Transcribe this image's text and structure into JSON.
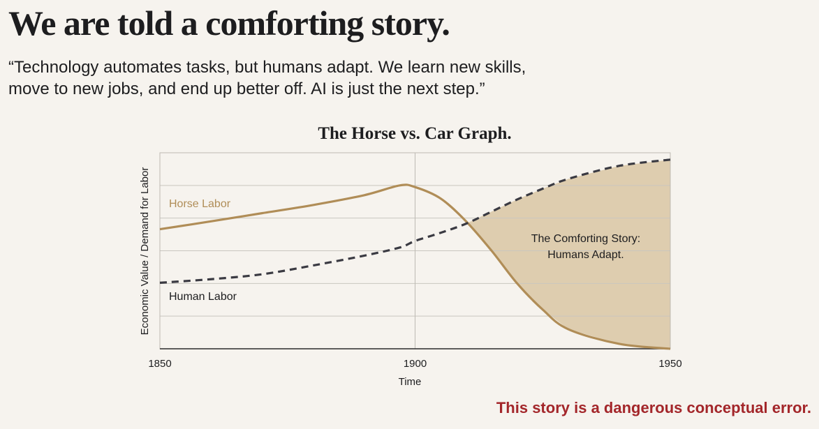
{
  "title": "We are told a comforting story.",
  "quote": [
    "“Technology automates tasks, but humans adapt. We learn new skills,",
    "move to new jobs, and end up better off. AI is just the next step.”"
  ],
  "footer": "This story is a dangerous conceptual error.",
  "chart_data": {
    "type": "line",
    "title": "The Horse vs. Car Graph.",
    "x_label": "Time",
    "y_label": "Economic Value / Demand for Labor",
    "x": [
      1850,
      1860,
      1870,
      1880,
      1890,
      1897,
      1900,
      1905,
      1910,
      1915,
      1920,
      1925,
      1930,
      1940,
      1950
    ],
    "series": [
      {
        "name": "Horse Labor",
        "color": "#b08d57",
        "values": [
          3.66,
          3.9,
          4.15,
          4.4,
          4.7,
          5.0,
          4.95,
          4.6,
          3.9,
          3.0,
          2.0,
          1.2,
          0.6,
          0.15,
          0.0
        ]
      },
      {
        "name": "Human Labor",
        "color": "#3a3a42",
        "dashed": true,
        "values": [
          2.02,
          2.13,
          2.28,
          2.55,
          2.85,
          3.1,
          3.3,
          3.55,
          3.83,
          4.2,
          4.57,
          4.9,
          5.2,
          5.6,
          5.79
        ]
      }
    ],
    "annotation": [
      "The Comforting Story:",
      "Humans Adapt."
    ],
    "shade_color": "#d9c6a3",
    "xlim": [
      1850,
      1950
    ],
    "xticks": [
      1850,
      1900,
      1950
    ],
    "ylim": [
      0,
      6
    ],
    "yticks": [
      1,
      2,
      3,
      4,
      5
    ],
    "grid": true
  }
}
